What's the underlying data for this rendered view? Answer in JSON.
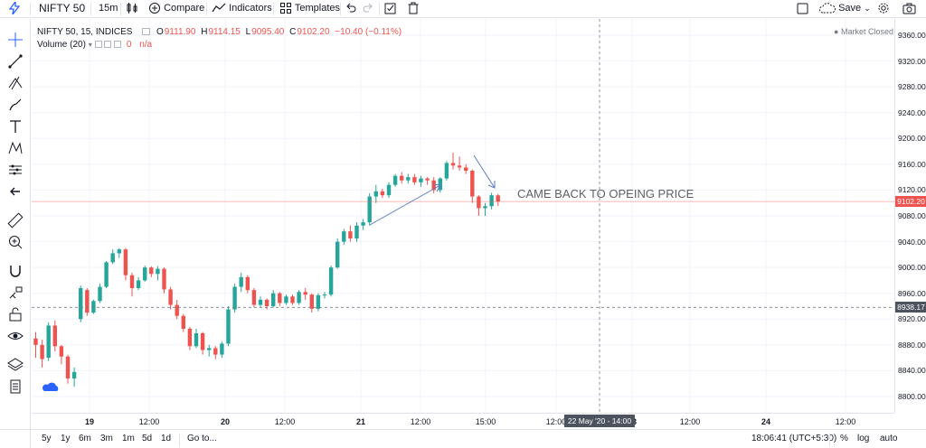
{
  "toolbar": {
    "symbol": "NIFTY 50",
    "interval": "15m",
    "compare": "Compare",
    "indicators": "Indicators",
    "templates": "Templates",
    "save": "Save"
  },
  "legend": {
    "title": "NIFTY 50, 15, INDICES",
    "o_label": "O",
    "o_value": "9111.90",
    "h_label": "H",
    "h_value": "9114.15",
    "l_label": "L",
    "l_value": "9095.40",
    "c_label": "C",
    "c_value": "9102.20",
    "change": "−10.40 (−0.11%)",
    "volume_label": "Volume (20)",
    "volume_value": "0",
    "volume_na": "n/a",
    "market_status": "Market Closed"
  },
  "annotation": "CAME BACK TO OPEING PRICE",
  "price_badges": {
    "last": "9102.20",
    "crosshair": "8938.17"
  },
  "time_badge": "22 May '20 - 14:00",
  "time_labels": [
    "19",
    "12:00",
    "20",
    "12:00",
    "21",
    "12:00",
    "15:00",
    "12:00",
    "23",
    "12:00",
    "24",
    "12:00"
  ],
  "bottom": {
    "ranges": [
      "5y",
      "1y",
      "6m",
      "3m",
      "1m",
      "5d",
      "1d"
    ],
    "goto": "Go to...",
    "clock": "18:06:41 (UTC+5:30)",
    "percent": "%",
    "log": "log",
    "auto": "auto"
  },
  "colors": {
    "up": "#26a69a",
    "down": "#ef5350",
    "accent": "#2962ff",
    "arrow": "#5b7cc4"
  },
  "chart_data": {
    "type": "candlestick",
    "symbol": "NIFTY 50",
    "interval": "15",
    "ylim": [
      8780,
      9380
    ],
    "y_ticks": [
      8800,
      8840,
      8880,
      8920,
      8960,
      9000,
      9040,
      9080,
      9120,
      9160,
      9200,
      9240,
      9280,
      9320,
      9360
    ],
    "last_price": 9102.2,
    "crosshair_price": 8938.17,
    "grid": true,
    "candles": [
      {
        "o": 8890,
        "h": 8900,
        "l": 8860,
        "c": 8880
      },
      {
        "o": 8880,
        "h": 8888,
        "l": 8845,
        "c": 8858
      },
      {
        "o": 8860,
        "h": 8915,
        "l": 8855,
        "c": 8910
      },
      {
        "o": 8910,
        "h": 8918,
        "l": 8870,
        "c": 8878
      },
      {
        "o": 8878,
        "h": 8880,
        "l": 8850,
        "c": 8862
      },
      {
        "o": 8862,
        "h": 8865,
        "l": 8820,
        "c": 8828
      },
      {
        "o": 8828,
        "h": 8845,
        "l": 8815,
        "c": 8838
      },
      {
        "o": 8920,
        "h": 8972,
        "l": 8915,
        "c": 8968
      },
      {
        "o": 8965,
        "h": 8968,
        "l": 8925,
        "c": 8930
      },
      {
        "o": 8930,
        "h": 8950,
        "l": 8928,
        "c": 8948
      },
      {
        "o": 8948,
        "h": 8975,
        "l": 8945,
        "c": 8970
      },
      {
        "o": 8970,
        "h": 9010,
        "l": 8968,
        "c": 9008
      },
      {
        "o": 9008,
        "h": 9028,
        "l": 9005,
        "c": 9022
      },
      {
        "o": 9022,
        "h": 9030,
        "l": 9015,
        "c": 9028
      },
      {
        "o": 9028,
        "h": 9030,
        "l": 8980,
        "c": 8988
      },
      {
        "o": 8988,
        "h": 8992,
        "l": 8955,
        "c": 8968
      },
      {
        "o": 8968,
        "h": 8985,
        "l": 8965,
        "c": 8980
      },
      {
        "o": 8980,
        "h": 9003,
        "l": 8978,
        "c": 9000
      },
      {
        "o": 9000,
        "h": 9002,
        "l": 8985,
        "c": 8990
      },
      {
        "o": 8990,
        "h": 9002,
        "l": 8980,
        "c": 8998
      },
      {
        "o": 8998,
        "h": 9000,
        "l": 8960,
        "c": 8966
      },
      {
        "o": 8966,
        "h": 8970,
        "l": 8935,
        "c": 8942
      },
      {
        "o": 8942,
        "h": 8950,
        "l": 8920,
        "c": 8925
      },
      {
        "o": 8925,
        "h": 8928,
        "l": 8900,
        "c": 8905
      },
      {
        "o": 8905,
        "h": 8908,
        "l": 8872,
        "c": 8878
      },
      {
        "o": 8878,
        "h": 8905,
        "l": 8875,
        "c": 8898
      },
      {
        "o": 8898,
        "h": 8900,
        "l": 8865,
        "c": 8872
      },
      {
        "o": 8872,
        "h": 8880,
        "l": 8862,
        "c": 8875
      },
      {
        "o": 8875,
        "h": 8878,
        "l": 8858,
        "c": 8865
      },
      {
        "o": 8865,
        "h": 8885,
        "l": 8860,
        "c": 8882
      },
      {
        "o": 8882,
        "h": 8940,
        "l": 8878,
        "c": 8935
      },
      {
        "o": 8935,
        "h": 8975,
        "l": 8930,
        "c": 8970
      },
      {
        "o": 8970,
        "h": 8992,
        "l": 8962,
        "c": 8985
      },
      {
        "o": 8985,
        "h": 8988,
        "l": 8960,
        "c": 8965
      },
      {
        "o": 8965,
        "h": 8968,
        "l": 8938,
        "c": 8942
      },
      {
        "o": 8942,
        "h": 8955,
        "l": 8938,
        "c": 8950
      },
      {
        "o": 8950,
        "h": 8952,
        "l": 8935,
        "c": 8940
      },
      {
        "o": 8940,
        "h": 8965,
        "l": 8938,
        "c": 8960
      },
      {
        "o": 8960,
        "h": 8962,
        "l": 8940,
        "c": 8945
      },
      {
        "o": 8945,
        "h": 8958,
        "l": 8942,
        "c": 8955
      },
      {
        "o": 8955,
        "h": 8958,
        "l": 8942,
        "c": 8945
      },
      {
        "o": 8945,
        "h": 8965,
        "l": 8942,
        "c": 8962
      },
      {
        "o": 8962,
        "h": 8968,
        "l": 8950,
        "c": 8958
      },
      {
        "o": 8958,
        "h": 8960,
        "l": 8930,
        "c": 8936
      },
      {
        "o": 8936,
        "h": 8960,
        "l": 8932,
        "c": 8957
      },
      {
        "o": 8957,
        "h": 8962,
        "l": 8952,
        "c": 8958
      },
      {
        "o": 8958,
        "h": 9003,
        "l": 8955,
        "c": 9000
      },
      {
        "o": 9000,
        "h": 9045,
        "l": 8998,
        "c": 9040
      },
      {
        "o": 9040,
        "h": 9060,
        "l": 9035,
        "c": 9056
      },
      {
        "o": 9056,
        "h": 9065,
        "l": 9040,
        "c": 9045
      },
      {
        "o": 9045,
        "h": 9070,
        "l": 9040,
        "c": 9065
      },
      {
        "o": 9065,
        "h": 9075,
        "l": 9058,
        "c": 9070
      },
      {
        "o": 9070,
        "h": 9115,
        "l": 9065,
        "c": 9110
      },
      {
        "o": 9110,
        "h": 9128,
        "l": 9100,
        "c": 9118
      },
      {
        "o": 9118,
        "h": 9122,
        "l": 9108,
        "c": 9112
      },
      {
        "o": 9112,
        "h": 9132,
        "l": 9108,
        "c": 9128
      },
      {
        "o": 9128,
        "h": 9145,
        "l": 9125,
        "c": 9142
      },
      {
        "o": 9142,
        "h": 9148,
        "l": 9130,
        "c": 9135
      },
      {
        "o": 9135,
        "h": 9145,
        "l": 9130,
        "c": 9140
      },
      {
        "o": 9140,
        "h": 9145,
        "l": 9128,
        "c": 9132
      },
      {
        "o": 9132,
        "h": 9142,
        "l": 9125,
        "c": 9138
      },
      {
        "o": 9138,
        "h": 9140,
        "l": 9128,
        "c": 9135
      },
      {
        "o": 9135,
        "h": 9140,
        "l": 9115,
        "c": 9120
      },
      {
        "o": 9120,
        "h": 9140,
        "l": 9116,
        "c": 9138
      },
      {
        "o": 9138,
        "h": 9165,
        "l": 9135,
        "c": 9162
      },
      {
        "o": 9162,
        "h": 9178,
        "l": 9152,
        "c": 9158
      },
      {
        "o": 9158,
        "h": 9172,
        "l": 9150,
        "c": 9155
      },
      {
        "o": 9155,
        "h": 9160,
        "l": 9145,
        "c": 9150
      },
      {
        "o": 9150,
        "h": 9152,
        "l": 9100,
        "c": 9110
      },
      {
        "o": 9110,
        "h": 9112,
        "l": 9080,
        "c": 9092
      },
      {
        "o": 9092,
        "h": 9100,
        "l": 9080,
        "c": 9095
      },
      {
        "o": 9095,
        "h": 9116,
        "l": 9090,
        "c": 9112
      },
      {
        "o": 9111.9,
        "h": 9114.15,
        "l": 9095.4,
        "c": 9102.2
      }
    ]
  }
}
